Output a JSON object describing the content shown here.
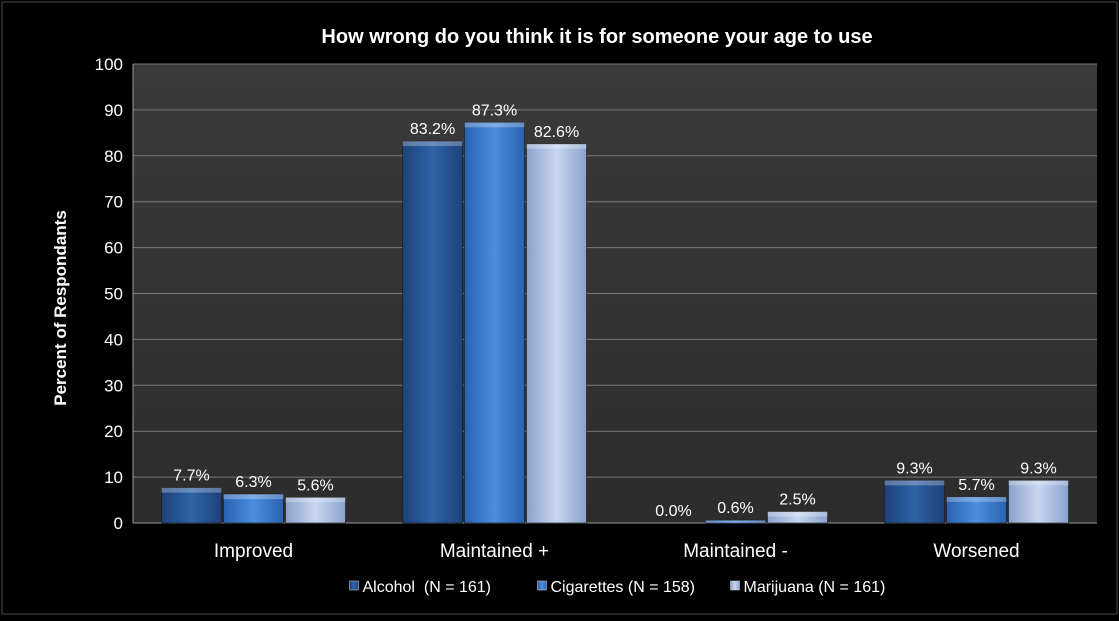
{
  "chart_data": {
    "type": "bar",
    "title": "How wrong do you think it is for someone your age to use",
    "xlabel": "",
    "ylabel": "Percent of Respondants",
    "ylim": [
      0,
      100
    ],
    "yticks": [
      "0",
      "10",
      "20",
      "30",
      "40",
      "50",
      "60",
      "70",
      "80",
      "90",
      "100"
    ],
    "ytick_values": [
      0,
      10,
      20,
      30,
      40,
      50,
      60,
      70,
      80,
      90,
      100
    ],
    "grid": true,
    "legend_position": "bottom",
    "categories": [
      "Improved",
      "Maintained +",
      "Maintained -",
      "Worsened"
    ],
    "series": [
      {
        "name": "Alcohol  (N = 161)",
        "values": [
          7.7,
          83.2,
          0.0,
          9.3
        ],
        "labels": [
          "7.7%",
          "83.2%",
          "0.0%",
          "9.3%"
        ],
        "color": "#2c5c9c"
      },
      {
        "name": "Cigarettes (N = 158)",
        "values": [
          6.3,
          87.3,
          0.6,
          5.7
        ],
        "labels": [
          "6.3%",
          "87.3%",
          "0.6%",
          "5.7%"
        ],
        "color": "#3f80d4"
      },
      {
        "name": "Marijuana (N = 161)",
        "values": [
          5.6,
          82.6,
          2.5,
          9.3
        ],
        "labels": [
          "5.6%",
          "82.6%",
          "2.5%",
          "9.3%"
        ],
        "color": "#aabde0"
      }
    ]
  }
}
